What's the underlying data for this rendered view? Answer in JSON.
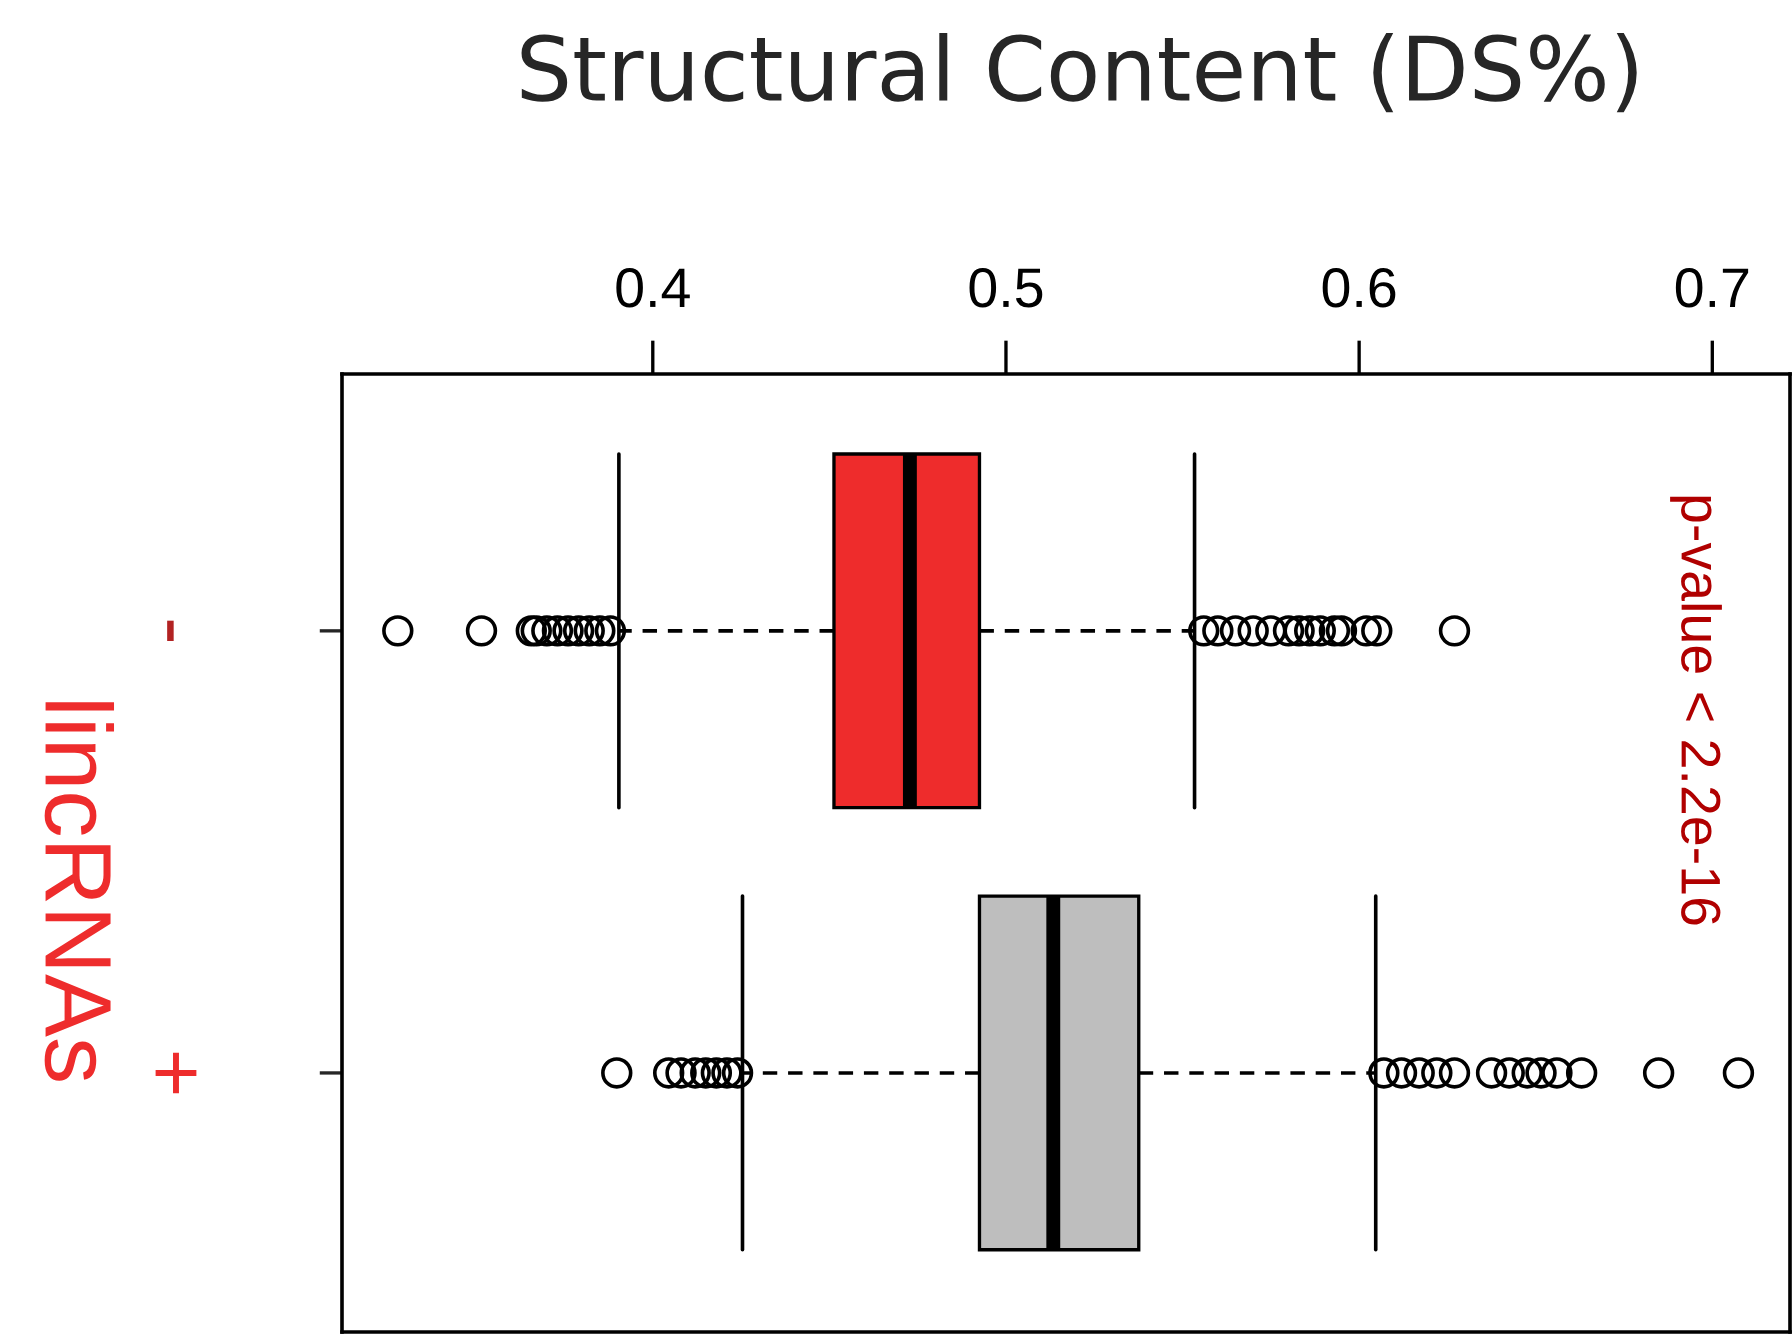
{
  "chart_data": {
    "type": "box",
    "orientation": "horizontal",
    "title": "Structural Content (DS%)",
    "ylabel": "lincRNAs",
    "categories": [
      "-",
      "+"
    ],
    "colors": [
      "#ee2c2c",
      "#bebebe"
    ],
    "boxes": [
      {
        "low": 0.3904,
        "q1": 0.4513,
        "median": 0.4728,
        "q3": 0.4925,
        "high": 0.5534,
        "outliers": [
          0.3278,
          0.3515,
          0.3656,
          0.367,
          0.37,
          0.373,
          0.376,
          0.379,
          0.382,
          0.385,
          0.388,
          0.556,
          0.56,
          0.565,
          0.57,
          0.575,
          0.58,
          0.583,
          0.586,
          0.589,
          0.593,
          0.595,
          0.602,
          0.605,
          0.627
        ]
      },
      {
        "low": 0.4254,
        "q1": 0.4925,
        "median": 0.5134,
        "q3": 0.5376,
        "high": 0.6047,
        "outliers": [
          0.3898,
          0.4045,
          0.408,
          0.412,
          0.415,
          0.418,
          0.421,
          0.424,
          0.607,
          0.612,
          0.617,
          0.622,
          0.627,
          0.6375,
          0.6425,
          0.6476,
          0.6515,
          0.656,
          0.663,
          0.6848,
          0.7074
        ]
      }
    ],
    "xlim": [
      0.312,
      0.722
    ],
    "xticks": [
      0.4,
      0.5,
      0.6,
      0.7
    ],
    "annotations": [
      "p-value < 2.2e-16"
    ]
  }
}
